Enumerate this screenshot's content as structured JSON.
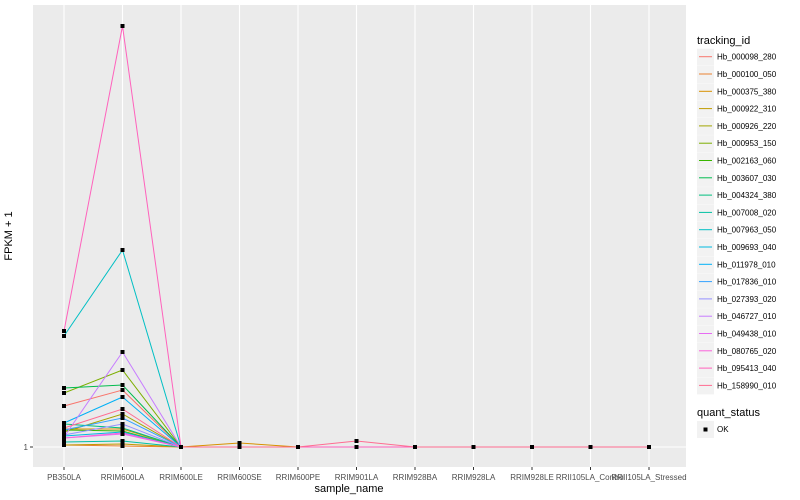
{
  "chart_data": {
    "type": "line",
    "xlabel": "sample_name",
    "ylabel": "FPKM + 1",
    "y_ticks": [
      "1"
    ],
    "ylim": [
      0,
      45
    ],
    "grid": true,
    "legend_position": "right",
    "categories": [
      "PB350LA",
      "RRIM600LA",
      "RRIM600LE",
      "RRIM600SE",
      "RRIM600PE",
      "RRIM901LA",
      "RRIM928BA",
      "RRIM928LA",
      "RRIM928LE",
      "RRII105LA_Control",
      "RRII105LA_Stressed"
    ],
    "legend_title": "tracking_id",
    "series": [
      {
        "name": "Hb_000098_280",
        "color": "#F8766D",
        "values": [
          5.1,
          6.7,
          1,
          1,
          1,
          1,
          1,
          1,
          1,
          1,
          1
        ]
      },
      {
        "name": "Hb_000100_050",
        "color": "#EA8331",
        "values": [
          1.2,
          1.1,
          1,
          1,
          1,
          1,
          1,
          1,
          1,
          1,
          1
        ]
      },
      {
        "name": "Hb_000375_380",
        "color": "#D89000",
        "values": [
          2.8,
          2.8,
          1,
          1.4,
          1,
          1,
          1,
          1,
          1,
          1,
          1
        ]
      },
      {
        "name": "Hb_000922_310",
        "color": "#C09B00",
        "values": [
          1.2,
          1.3,
          1,
          1,
          1,
          1,
          1,
          1,
          1,
          1,
          1
        ]
      },
      {
        "name": "Hb_000926_220",
        "color": "#A3A500",
        "values": [
          2.5,
          4.3,
          1,
          1,
          1,
          1,
          1,
          1,
          1,
          1,
          1
        ]
      },
      {
        "name": "Hb_000953_150",
        "color": "#7CAE00",
        "values": [
          6.4,
          8.7,
          1,
          1,
          1,
          1,
          1,
          1,
          1,
          1,
          1
        ]
      },
      {
        "name": "Hb_002163_060",
        "color": "#39B600",
        "values": [
          2.7,
          2.6,
          1,
          1,
          1,
          1,
          1,
          1,
          1,
          1,
          1
        ]
      },
      {
        "name": "Hb_003607_030",
        "color": "#00BB4E",
        "values": [
          6.9,
          7.2,
          1,
          1,
          1,
          1,
          1,
          1,
          1,
          1,
          1
        ]
      },
      {
        "name": "Hb_004324_380",
        "color": "#00BF7D",
        "values": [
          3.3,
          2.9,
          1,
          1,
          1,
          1,
          1,
          1,
          1,
          1,
          1
        ]
      },
      {
        "name": "Hb_007008_020",
        "color": "#00C1A3",
        "values": [
          1.5,
          1.6,
          1,
          1,
          1,
          1,
          1,
          1,
          1,
          1,
          1
        ]
      },
      {
        "name": "Hb_007963_050",
        "color": "#00BFC4",
        "values": [
          12.1,
          20.7,
          1,
          1,
          1,
          1,
          1,
          1,
          1,
          1,
          1
        ]
      },
      {
        "name": "Hb_009693_040",
        "color": "#00BAE0",
        "values": [
          2.1,
          2.5,
          1,
          1,
          1,
          1,
          1,
          1,
          1,
          1,
          1
        ]
      },
      {
        "name": "Hb_011978_010",
        "color": "#00B0F6",
        "values": [
          3.4,
          6.0,
          1,
          1,
          1,
          1,
          1,
          1,
          1,
          1,
          1
        ]
      },
      {
        "name": "Hb_017836_010",
        "color": "#35A2FF",
        "values": [
          2.7,
          3.9,
          1,
          1,
          1,
          1,
          1,
          1,
          1,
          1,
          1
        ]
      },
      {
        "name": "Hb_027393_020",
        "color": "#9590FF",
        "values": [
          2.2,
          3.3,
          1,
          1,
          1,
          1,
          1,
          1,
          1,
          1,
          1
        ]
      },
      {
        "name": "Hb_046727_010",
        "color": "#C77CFF",
        "values": [
          2.0,
          10.5,
          1,
          1,
          1,
          1,
          1,
          1,
          1,
          1,
          1
        ]
      },
      {
        "name": "Hb_049438_010",
        "color": "#E76BF3",
        "values": [
          1.9,
          2.3,
          1,
          1,
          1,
          1,
          1,
          1,
          1,
          1,
          1
        ]
      },
      {
        "name": "Hb_080765_020",
        "color": "#FA62DB",
        "values": [
          1.9,
          2.4,
          1,
          1,
          1,
          1,
          1,
          1,
          1,
          1,
          1
        ]
      },
      {
        "name": "Hb_095413_040",
        "color": "#FF62BC",
        "values": [
          12.6,
          43.1,
          1,
          1,
          1,
          1,
          1,
          1,
          1,
          1,
          1
        ]
      },
      {
        "name": "Hb_158990_010",
        "color": "#FF6C91",
        "values": [
          2.9,
          4.8,
          1,
          1,
          1,
          1.6,
          1,
          1,
          1,
          1,
          1
        ]
      }
    ],
    "shape_legend_title": "quant_status",
    "shape_legend_items": [
      "OK"
    ]
  }
}
